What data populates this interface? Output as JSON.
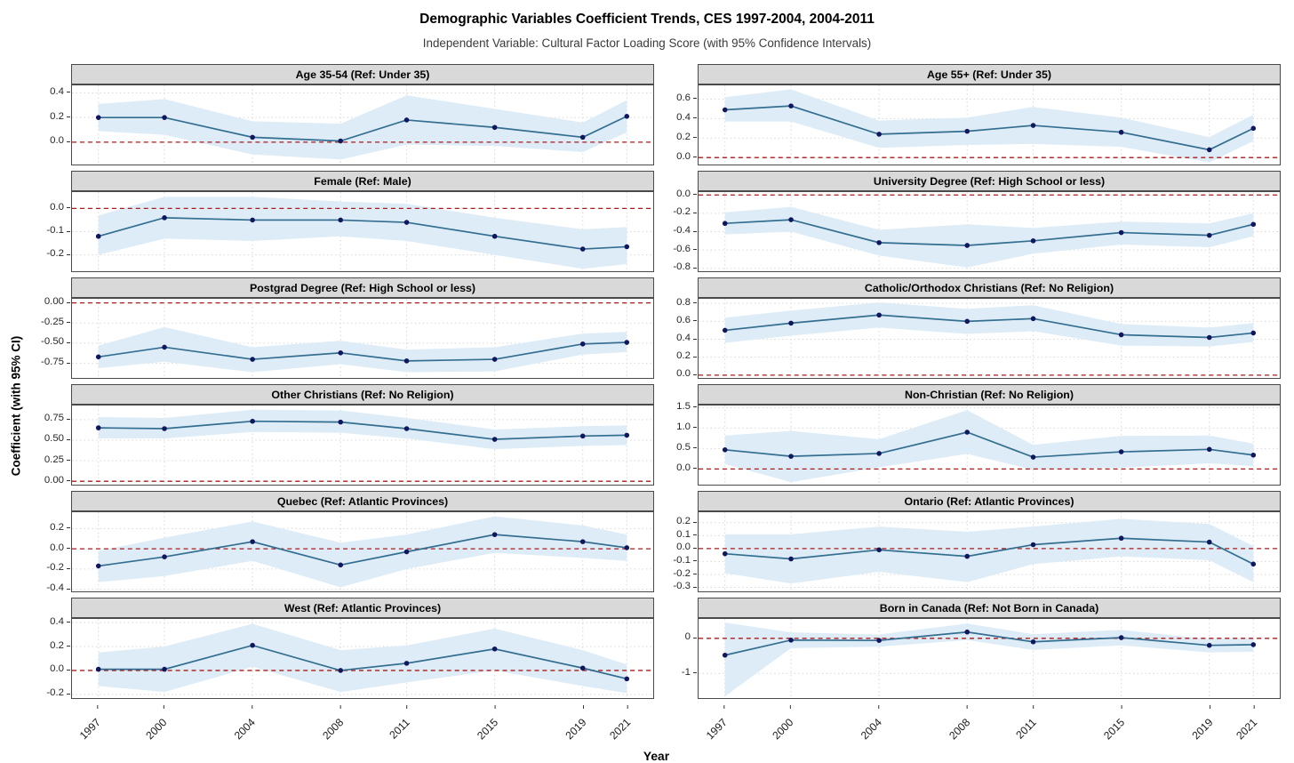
{
  "header": {
    "title": "Demographic Variables Coefficient Trends, CES 1997-2004, 2004-2011",
    "subtitle": "Independent Variable: Cultural Factor Loading Score (with 95% Confidence Intervals)"
  },
  "axes": {
    "x_title": "Year",
    "y_title": "Coefficient (with 95% CI)"
  },
  "style": {
    "line_color": "#336e91",
    "point_color": "#10175e",
    "band_color": "#ddecf6",
    "zero_line_color": "#ab1a1a",
    "grid_color": "#d8d8d8",
    "strip_bg": "#d9d9d9",
    "border_color": "#4a4a4a"
  },
  "chart_data": {
    "type": "line",
    "title": "Demographic Variables Coefficient Trends, CES 1997-2004, 2004-2011",
    "subtitle": "Independent Variable: Cultural Factor Loading Score (with 95% Confidence Intervals)",
    "xlabel": "Year",
    "ylabel": "Coefficient (with 95% CI)",
    "x": [
      1997,
      2000,
      2004,
      2008,
      2011,
      2015,
      2019,
      2021
    ],
    "xlim": [
      1995.8,
      2022.2
    ],
    "grid": "dotted",
    "zero_reference_line": 0,
    "panels": [
      {
        "title": "Age 35-54 (Ref: Under 35)",
        "ylim": [
          -0.18,
          0.46
        ],
        "yticks": [
          0.0,
          0.2,
          0.4
        ],
        "ytick_labels": [
          "0.0",
          "0.2",
          "0.4"
        ],
        "estimates": [
          0.2,
          0.2,
          0.04,
          0.01,
          0.18,
          0.12,
          0.04,
          0.21
        ],
        "ci_lower": [
          0.09,
          0.06,
          -0.1,
          -0.14,
          -0.02,
          -0.03,
          -0.08,
          0.08
        ],
        "ci_upper": [
          0.31,
          0.35,
          0.17,
          0.15,
          0.38,
          0.27,
          0.16,
          0.34
        ]
      },
      {
        "title": "Age 55+ (Ref: Under 35)",
        "ylim": [
          -0.07,
          0.74
        ],
        "yticks": [
          0.0,
          0.2,
          0.4,
          0.6
        ],
        "ytick_labels": [
          "0.0",
          "0.2",
          "0.4",
          "0.6"
        ],
        "estimates": [
          0.49,
          0.53,
          0.24,
          0.27,
          0.33,
          0.26,
          0.08,
          0.3
        ],
        "ci_lower": [
          0.37,
          0.37,
          0.1,
          0.13,
          0.14,
          0.11,
          -0.05,
          0.17
        ],
        "ci_upper": [
          0.62,
          0.7,
          0.38,
          0.41,
          0.52,
          0.41,
          0.21,
          0.44
        ]
      },
      {
        "title": "Female (Ref: Male)",
        "ylim": [
          -0.27,
          0.07
        ],
        "yticks": [
          -0.2,
          -0.1,
          0.0
        ],
        "ytick_labels": [
          "-0.2",
          "-0.1",
          "0.0"
        ],
        "estimates": [
          -0.12,
          -0.04,
          -0.05,
          -0.05,
          -0.06,
          -0.12,
          -0.175,
          -0.165
        ],
        "ci_lower": [
          -0.2,
          -0.13,
          -0.14,
          -0.12,
          -0.14,
          -0.2,
          -0.26,
          -0.24
        ],
        "ci_upper": [
          -0.03,
          0.05,
          0.05,
          0.03,
          0.02,
          -0.04,
          -0.09,
          -0.08
        ]
      },
      {
        "title": "University Degree (Ref: High School or less)",
        "ylim": [
          -0.83,
          0.03
        ],
        "yticks": [
          -0.8,
          -0.6,
          -0.4,
          -0.2,
          0.0
        ],
        "ytick_labels": [
          "-0.8",
          "-0.6",
          "-0.4",
          "-0.2",
          "0.0"
        ],
        "estimates": [
          -0.31,
          -0.27,
          -0.52,
          -0.55,
          -0.5,
          -0.41,
          -0.44,
          -0.32
        ],
        "ci_lower": [
          -0.43,
          -0.4,
          -0.66,
          -0.79,
          -0.64,
          -0.54,
          -0.57,
          -0.45
        ],
        "ci_upper": [
          -0.19,
          -0.13,
          -0.38,
          -0.32,
          -0.36,
          -0.29,
          -0.31,
          -0.2
        ]
      },
      {
        "title": "Postgrad Degree (Ref: High School or less)",
        "ylim": [
          -0.93,
          0.05
        ],
        "yticks": [
          -0.75,
          -0.5,
          -0.25,
          0.0
        ],
        "ytick_labels": [
          "-0.75",
          "-0.50",
          "-0.25",
          "0.00"
        ],
        "estimates": [
          -0.67,
          -0.55,
          -0.7,
          -0.62,
          -0.72,
          -0.7,
          -0.51,
          -0.49
        ],
        "ci_lower": [
          -0.81,
          -0.73,
          -0.86,
          -0.76,
          -0.86,
          -0.85,
          -0.64,
          -0.61
        ],
        "ci_upper": [
          -0.53,
          -0.3,
          -0.55,
          -0.47,
          -0.58,
          -0.55,
          -0.38,
          -0.36
        ]
      },
      {
        "title": "Catholic/Orthodox Christians (Ref: No Religion)",
        "ylim": [
          -0.03,
          0.85
        ],
        "yticks": [
          0.0,
          0.2,
          0.4,
          0.6,
          0.8
        ],
        "ytick_labels": [
          "0.0",
          "0.2",
          "0.4",
          "0.6",
          "0.8"
        ],
        "estimates": [
          0.5,
          0.58,
          0.67,
          0.6,
          0.63,
          0.45,
          0.42,
          0.47
        ],
        "ci_lower": [
          0.36,
          0.44,
          0.53,
          0.46,
          0.49,
          0.33,
          0.32,
          0.37
        ],
        "ci_upper": [
          0.64,
          0.72,
          0.81,
          0.74,
          0.78,
          0.57,
          0.53,
          0.58
        ]
      },
      {
        "title": "Other Christians (Ref: No Religion)",
        "ylim": [
          -0.04,
          0.92
        ],
        "yticks": [
          0.0,
          0.25,
          0.5,
          0.75
        ],
        "ytick_labels": [
          "0.00",
          "0.25",
          "0.50",
          "0.75"
        ],
        "estimates": [
          0.65,
          0.64,
          0.73,
          0.72,
          0.64,
          0.51,
          0.55,
          0.56
        ],
        "ci_lower": [
          0.52,
          0.52,
          0.6,
          0.59,
          0.52,
          0.39,
          0.43,
          0.44
        ],
        "ci_upper": [
          0.78,
          0.77,
          0.87,
          0.86,
          0.77,
          0.63,
          0.67,
          0.68
        ]
      },
      {
        "title": "Non-Christian (Ref: No Religion)",
        "ylim": [
          -0.38,
          1.55
        ],
        "yticks": [
          0.0,
          0.5,
          1.0,
          1.5
        ],
        "ytick_labels": [
          "0.0",
          "0.5",
          "1.0",
          "1.5"
        ],
        "estimates": [
          0.47,
          0.31,
          0.38,
          0.9,
          0.29,
          0.42,
          0.48,
          0.34
        ],
        "ci_lower": [
          0.12,
          -0.32,
          0.04,
          0.37,
          -0.02,
          0.03,
          0.14,
          0.07
        ],
        "ci_upper": [
          0.82,
          0.93,
          0.73,
          1.44,
          0.59,
          0.81,
          0.82,
          0.62
        ]
      },
      {
        "title": "Quebec (Ref: Atlantic Provinces)",
        "ylim": [
          -0.42,
          0.36
        ],
        "yticks": [
          -0.4,
          -0.2,
          0.0,
          0.2
        ],
        "ytick_labels": [
          "-0.4",
          "-0.2",
          "0.0",
          "0.2"
        ],
        "estimates": [
          -0.17,
          -0.08,
          0.07,
          -0.16,
          -0.03,
          0.14,
          0.07,
          0.01
        ],
        "ci_lower": [
          -0.33,
          -0.27,
          -0.12,
          -0.38,
          -0.2,
          -0.04,
          -0.09,
          -0.12
        ],
        "ci_upper": [
          -0.02,
          0.11,
          0.27,
          0.06,
          0.14,
          0.32,
          0.23,
          0.14
        ]
      },
      {
        "title": "Ontario (Ref: Atlantic Provinces)",
        "ylim": [
          -0.33,
          0.28
        ],
        "yticks": [
          -0.3,
          -0.2,
          -0.1,
          0.0,
          0.1,
          0.2
        ],
        "ytick_labels": [
          "-0.3",
          "-0.2",
          "-0.1",
          "0.0",
          "0.1",
          "0.2"
        ],
        "estimates": [
          -0.04,
          -0.08,
          -0.01,
          -0.06,
          0.03,
          0.08,
          0.05,
          -0.12
        ],
        "ci_lower": [
          -0.19,
          -0.27,
          -0.18,
          -0.26,
          -0.12,
          -0.06,
          -0.09,
          -0.26
        ],
        "ci_upper": [
          0.11,
          0.11,
          0.17,
          0.13,
          0.17,
          0.23,
          0.19,
          0.02
        ]
      },
      {
        "title": "West (Ref: Atlantic Provinces)",
        "ylim": [
          -0.23,
          0.43
        ],
        "yticks": [
          -0.2,
          0.0,
          0.2,
          0.4
        ],
        "ytick_labels": [
          "-0.2",
          "0.0",
          "0.2",
          "0.4"
        ],
        "estimates": [
          0.01,
          0.01,
          0.21,
          0.0,
          0.06,
          0.18,
          0.02,
          -0.07
        ],
        "ci_lower": [
          -0.13,
          -0.18,
          0.03,
          -0.18,
          -0.1,
          0.0,
          -0.13,
          -0.19
        ],
        "ci_upper": [
          0.15,
          0.2,
          0.39,
          0.17,
          0.21,
          0.35,
          0.17,
          0.05
        ]
      },
      {
        "title": "Born in Canada (Ref: Not Born in Canada)",
        "ylim": [
          -1.7,
          0.55
        ],
        "yticks": [
          -1,
          0
        ],
        "ytick_labels": [
          "-1",
          "0"
        ],
        "estimates": [
          -0.48,
          -0.05,
          -0.06,
          0.18,
          -0.1,
          0.02,
          -0.2,
          -0.18
        ],
        "ci_lower": [
          -1.65,
          -0.28,
          -0.24,
          -0.05,
          -0.33,
          -0.2,
          -0.4,
          -0.38
        ],
        "ci_upper": [
          0.45,
          0.17,
          0.11,
          0.42,
          0.12,
          0.24,
          -0.02,
          0.0
        ]
      }
    ]
  }
}
